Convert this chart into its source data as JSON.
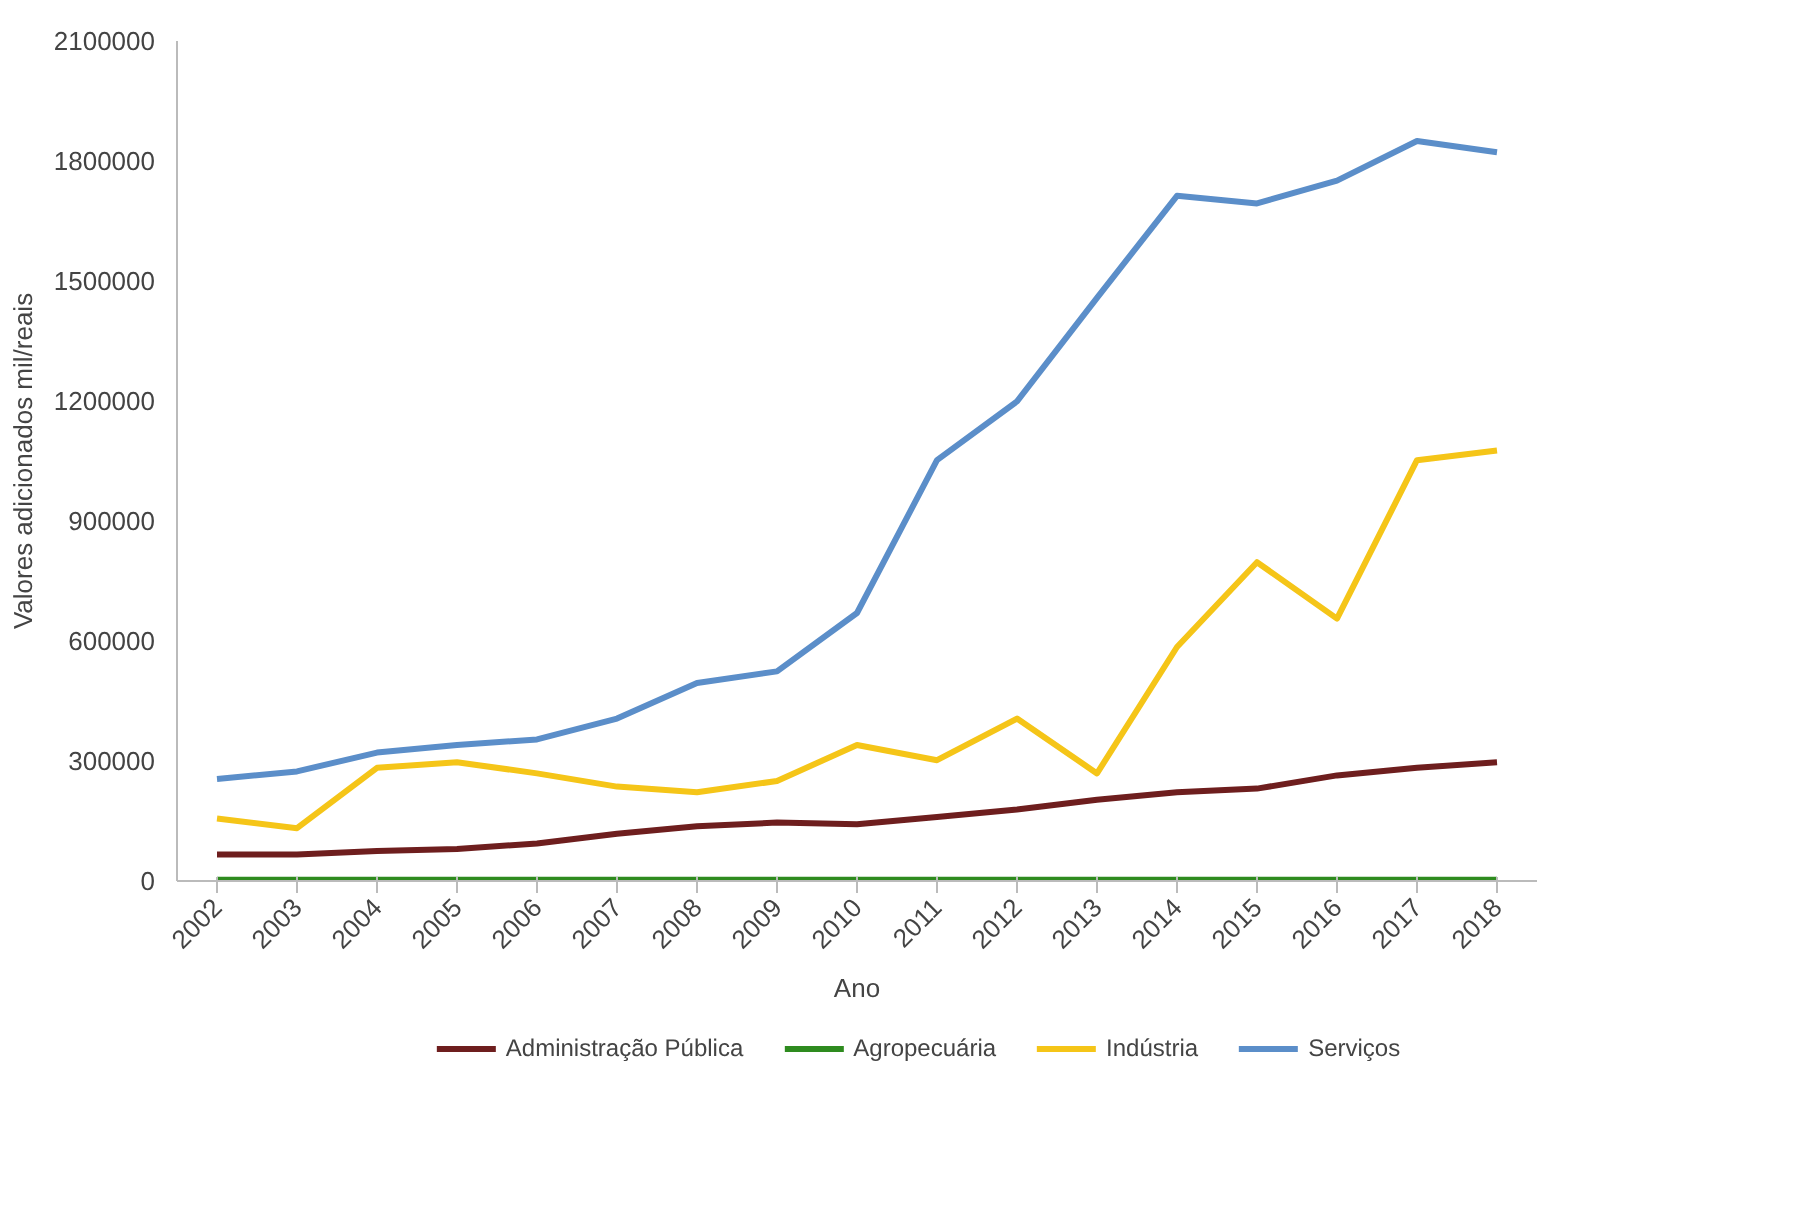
{
  "chart_data": {
    "type": "line",
    "xlabel": "Ano",
    "ylabel": "Valores adicionados mil/reais",
    "categories": [
      "2002",
      "2003",
      "2004",
      "2005",
      "2006",
      "2007",
      "2008",
      "2009",
      "2010",
      "2011",
      "2012",
      "2013",
      "2014",
      "2015",
      "2016",
      "2017",
      "2018"
    ],
    "ylim": [
      0,
      2100000
    ],
    "yticks": [
      0,
      300000,
      600000,
      900000,
      1200000,
      1500000,
      1800000,
      2100000
    ],
    "grid": false,
    "legend": "bottom",
    "marker": "none",
    "line_style": "solid",
    "series": [
      {
        "name": "Administração Pública",
        "color": "#6e1e1e",
        "values": [
          66000,
          66000,
          75000,
          80000,
          94000,
          118000,
          137000,
          146000,
          142000,
          160000,
          179000,
          203000,
          222000,
          231000,
          264000,
          283000,
          297000
        ]
      },
      {
        "name": "Agropecuária",
        "color": "#2e8b1f",
        "values": [
          3000,
          3000,
          3000,
          3000,
          3000,
          3000,
          3000,
          3000,
          3000,
          3000,
          3000,
          3000,
          3000,
          3000,
          3000,
          3000,
          3000
        ]
      },
      {
        "name": "Indústria",
        "color": "#f5c518",
        "values": [
          156000,
          132000,
          283000,
          297000,
          269000,
          236000,
          222000,
          250000,
          340000,
          302000,
          406000,
          269000,
          585000,
          797000,
          656000,
          1052000,
          1076000
        ]
      },
      {
        "name": "Serviços",
        "color": "#5b8ec9",
        "values": [
          255000,
          274000,
          321000,
          340000,
          354000,
          406000,
          495000,
          524000,
          670000,
          1052000,
          1199000,
          1458000,
          1713000,
          1694000,
          1751000,
          1850000,
          1822000
        ]
      }
    ]
  }
}
